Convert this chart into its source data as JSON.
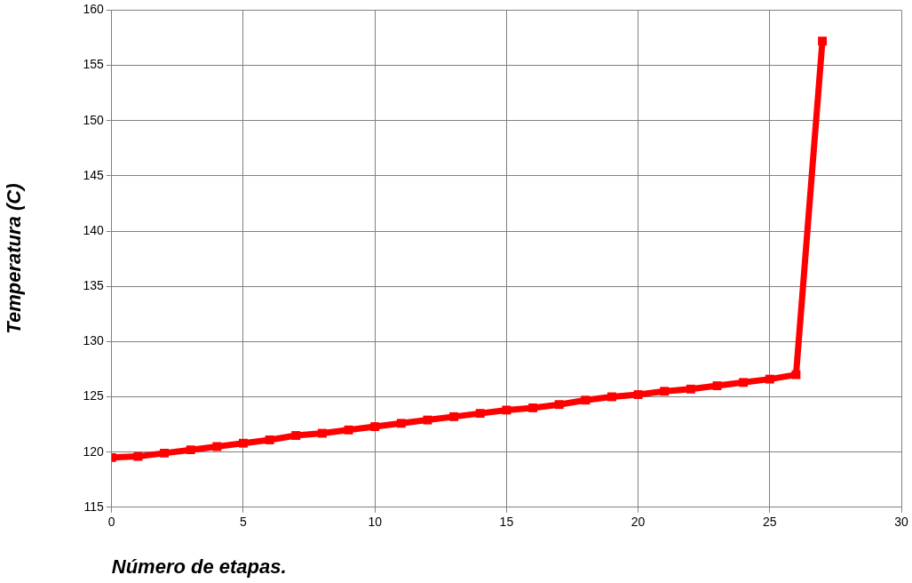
{
  "chart_data": {
    "type": "line",
    "xlabel": "Número de etapas.",
    "ylabel": "Temperatura (C)",
    "x": [
      0,
      1,
      2,
      3,
      4,
      5,
      6,
      7,
      8,
      9,
      10,
      11,
      12,
      13,
      14,
      15,
      16,
      17,
      18,
      19,
      20,
      21,
      22,
      23,
      24,
      25,
      26,
      27
    ],
    "series": [
      {
        "color": "#ff0000",
        "values": [
          119.5,
          119.6,
          119.9,
          120.2,
          120.5,
          120.8,
          121.1,
          121.5,
          121.7,
          122.0,
          122.3,
          122.6,
          122.9,
          123.2,
          123.5,
          123.8,
          124.0,
          124.3,
          124.7,
          125.0,
          125.2,
          125.5,
          125.7,
          126.0,
          126.3,
          126.6,
          127.0,
          157.2
        ]
      }
    ],
    "xlim": [
      0,
      30
    ],
    "xticks": [
      0,
      5,
      10,
      15,
      20,
      25,
      30
    ],
    "ylim": [
      115,
      160
    ],
    "yticks": [
      115,
      120,
      125,
      130,
      135,
      140,
      145,
      150,
      155,
      160
    ],
    "grid": true,
    "legend": false,
    "marker": "square",
    "line_style": "solid"
  }
}
